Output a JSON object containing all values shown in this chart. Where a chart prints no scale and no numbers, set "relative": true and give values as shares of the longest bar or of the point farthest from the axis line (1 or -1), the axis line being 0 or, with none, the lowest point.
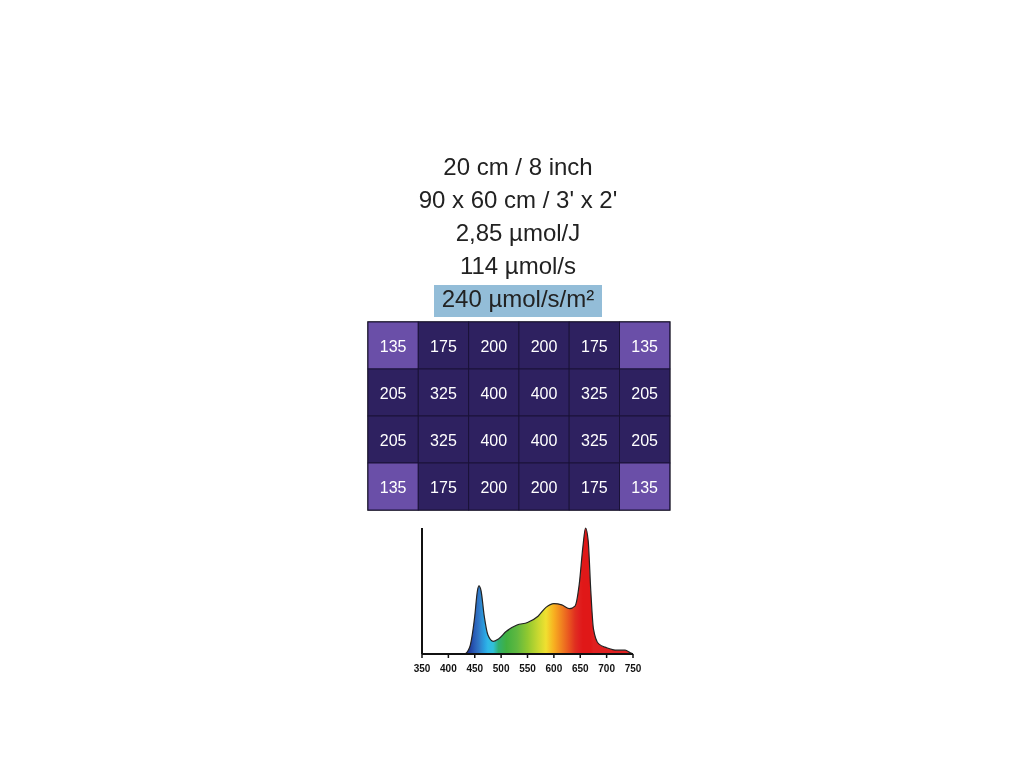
{
  "chart_data": [
    {
      "type": "heatmap",
      "annotations": [
        "20 cm / 8 inch",
        "90 x 60 cm / 3' x 2'",
        "2,85 µmol/J",
        "114 µmol/s",
        "240 µmol/s/m²"
      ],
      "categories": [
        null,
        null,
        null,
        null,
        null,
        null
      ],
      "y_categories": [
        null,
        null,
        null,
        null
      ],
      "cells": [
        [
          135,
          175,
          200,
          200,
          175,
          135
        ],
        [
          205,
          325,
          400,
          400,
          325,
          205
        ],
        [
          205,
          325,
          400,
          400,
          325,
          205
        ],
        [
          135,
          175,
          200,
          200,
          175,
          135
        ]
      ],
      "colors": [
        [
          "#6a4fa8",
          "#2e2160",
          "#2e2160",
          "#2e2160",
          "#2e2160",
          "#6a4fa8"
        ],
        [
          "#2e2160",
          "#2e2160",
          "#2e2160",
          "#2e2160",
          "#2e2160",
          "#2e2160"
        ],
        [
          "#2e2160",
          "#2e2160",
          "#2e2160",
          "#2e2160",
          "#2e2160",
          "#2e2160"
        ],
        [
          "#6a4fa8",
          "#2e2160",
          "#2e2160",
          "#2e2160",
          "#2e2160",
          "#6a4fa8"
        ]
      ],
      "data_labels": true
    },
    {
      "type": "area",
      "relative": true,
      "xlim": [
        350,
        750
      ],
      "xticks": [
        350,
        400,
        450,
        500,
        550,
        600,
        650,
        700,
        750
      ],
      "grid": false,
      "series": [
        {
          "x": [
            350,
            430,
            440,
            450,
            455,
            458,
            462,
            468,
            475,
            485,
            495,
            510,
            530,
            550,
            570,
            585,
            600,
            615,
            630,
            640,
            648,
            655,
            660,
            665,
            670,
            675,
            685,
            700,
            720,
            735,
            745,
            750
          ],
          "values": [
            0,
            0,
            0.05,
            0.3,
            0.5,
            0.54,
            0.5,
            0.3,
            0.15,
            0.1,
            0.12,
            0.18,
            0.23,
            0.25,
            0.3,
            0.37,
            0.4,
            0.39,
            0.36,
            0.38,
            0.55,
            0.85,
            1,
            0.9,
            0.5,
            0.2,
            0.08,
            0.05,
            0.03,
            0.03,
            0.01,
            0
          ],
          "colors": [
            "#1a2a80",
            "#1a2a80",
            "#203a9a",
            "#2a5fb8",
            "#2f6fc0",
            "#3078c8",
            "#2f8ad0",
            "#2aa0e0",
            "#30b8e8",
            "#30c0d8",
            "#30b070",
            "#40b040",
            "#60b840",
            "#90c830",
            "#c8d830",
            "#f0e030",
            "#f8b020",
            "#f08020",
            "#e85020",
            "#e03020",
            "#e02020",
            "#e01818",
            "#e01818",
            "#e01818",
            "#e01818",
            "#e02020",
            "#e02020",
            "#e02020",
            "#e02020",
            "#e02020",
            "#e02020",
            "#e02020"
          ]
        }
      ]
    }
  ]
}
